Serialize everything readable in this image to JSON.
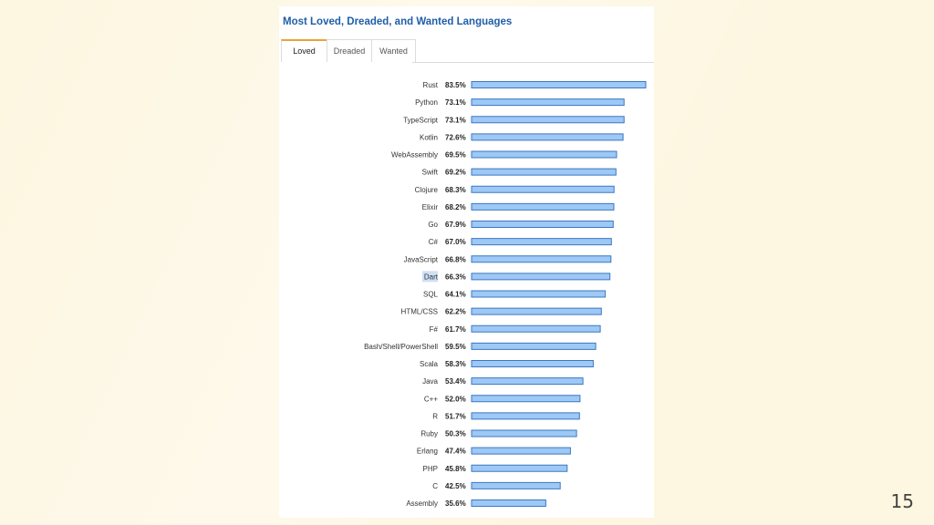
{
  "title": "Most Loved, Dreaded, and Wanted Languages",
  "tabs": [
    {
      "label": "Loved",
      "active": true
    },
    {
      "label": "Dreaded",
      "active": false
    },
    {
      "label": "Wanted",
      "active": false
    }
  ],
  "highlighted_label": "Dart",
  "slide_number": "15",
  "colors": {
    "bar_fill": "#9ec8f5",
    "bar_stroke": "#3a78c2",
    "title": "#1f5ea8",
    "tab_accent": "#e8a33c",
    "highlight": "#cfe0f7"
  },
  "chart_data": {
    "type": "bar",
    "orientation": "horizontal",
    "title": "Most Loved, Dreaded, and Wanted Languages",
    "xlabel": "",
    "ylabel": "",
    "xlim": [
      0,
      100
    ],
    "grid": false,
    "categories": [
      "Rust",
      "Python",
      "TypeScript",
      "Kotlin",
      "WebAssembly",
      "Swift",
      "Clojure",
      "Elixir",
      "Go",
      "C#",
      "JavaScript",
      "Dart",
      "SQL",
      "HTML/CSS",
      "F#",
      "Bash/Shell/PowerShell",
      "Scala",
      "Java",
      "C++",
      "R",
      "Ruby",
      "Erlang",
      "PHP",
      "C",
      "Assembly"
    ],
    "values": [
      83.5,
      73.1,
      73.1,
      72.6,
      69.5,
      69.2,
      68.3,
      68.2,
      67.9,
      67.0,
      66.8,
      66.3,
      64.1,
      62.2,
      61.7,
      59.5,
      58.3,
      53.4,
      52.0,
      51.7,
      50.3,
      47.4,
      45.8,
      42.5,
      35.6
    ],
    "value_labels": [
      "83.5%",
      "73.1%",
      "73.1%",
      "72.6%",
      "69.5%",
      "69.2%",
      "68.3%",
      "68.2%",
      "67.9%",
      "67.0%",
      "66.8%",
      "66.3%",
      "64.1%",
      "62.2%",
      "61.7%",
      "59.5%",
      "58.3%",
      "53.4%",
      "52.0%",
      "51.7%",
      "50.3%",
      "47.4%",
      "45.8%",
      "42.5%",
      "35.6%"
    ]
  }
}
